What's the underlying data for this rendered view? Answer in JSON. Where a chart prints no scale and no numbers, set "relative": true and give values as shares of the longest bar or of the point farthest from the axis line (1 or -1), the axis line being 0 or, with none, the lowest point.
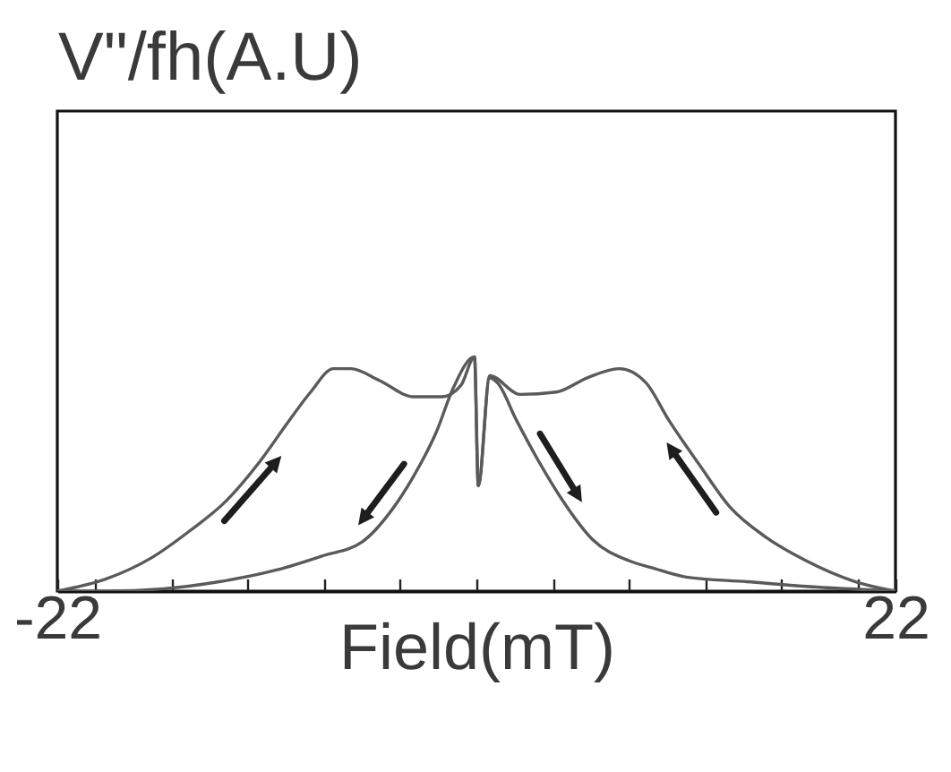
{
  "chart_data": {
    "type": "line",
    "xlabel": "Field(mT)",
    "ylabel": "V\"/fh(A.U)",
    "relative": true,
    "xlim": [
      -22,
      22
    ],
    "xticks": [
      -22,
      {
        "value": -20,
        "label": null
      },
      {
        "value": -16,
        "label": null
      },
      {
        "value": -12,
        "label": null
      },
      {
        "value": -8,
        "label": null
      },
      {
        "value": -4,
        "label": null
      },
      {
        "value": 0,
        "label": null
      },
      {
        "value": 4,
        "label": null
      },
      {
        "value": 8,
        "label": null
      },
      {
        "value": 12,
        "label": null
      },
      {
        "value": 16,
        "label": null
      },
      {
        "value": 20,
        "label": null
      },
      22
    ],
    "series": [
      {
        "color": "#5a5a5a",
        "x": [
          -22,
          -19.5,
          -17.1,
          -15,
          -13.2,
          -11.4,
          -9.9,
          -8.7,
          -7.5,
          -6.6,
          -5.1,
          -3.3,
          -1.8,
          -0.8,
          -0.1,
          0.1,
          0.7,
          1.1,
          2.1,
          3.3,
          4.5,
          6.1,
          8,
          9.2,
          11,
          14.2,
          17.3,
          22
        ],
        "values": [
          0,
          0.05,
          0.14,
          0.26,
          0.38,
          0.55,
          0.72,
          0.85,
          0.95,
          0.95,
          0.9,
          0.83,
          0.83,
          0.88,
          1,
          0.45,
          0.91,
          0.89,
          0.73,
          0.55,
          0.39,
          0.22,
          0.13,
          0.1,
          0.06,
          0.04,
          0.02,
          0
        ]
      },
      {
        "color": "#5a5a5a",
        "x": [
          -22,
          -19.5,
          -16.4,
          -13.5,
          -10.5,
          -8.1,
          -6,
          -4.5,
          -3.3,
          -2.1,
          -1.2,
          -0.1,
          0.1,
          0.7,
          2.3,
          4.2,
          5.8,
          7.5,
          8.9,
          10.1,
          11.7,
          13.3,
          15.2,
          17.3,
          19.9,
          22
        ],
        "values": [
          0,
          0,
          0.01,
          0.04,
          0.09,
          0.15,
          0.21,
          0.34,
          0.49,
          0.68,
          0.87,
          1,
          0.45,
          0.92,
          0.84,
          0.85,
          0.91,
          0.95,
          0.89,
          0.73,
          0.54,
          0.36,
          0.23,
          0.13,
          0.04,
          0
        ]
      }
    ]
  }
}
